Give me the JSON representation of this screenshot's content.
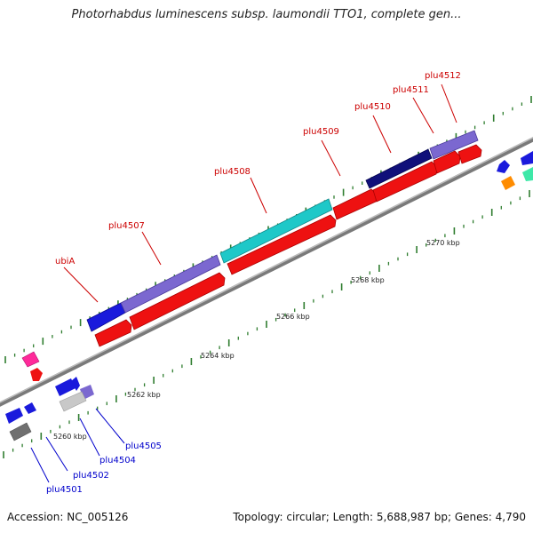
{
  "title": "Photorhabdus luminescens subsp. laumondii TTO1, complete gen...",
  "footer": {
    "accession": "Accession: NC_005126",
    "topology": "Topology: circular; Length: 5,688,987 bp; Genes: 4,790"
  },
  "colors": {
    "backbone": "#909090",
    "tick": "#2f7d2f",
    "forward_label": "#cc0000",
    "reverse_label": "#0000cc"
  },
  "scale_labels": [
    "5260 kbp",
    "5262 kbp",
    "5264 kbp",
    "5266 kbp",
    "5268 kbp",
    "5270 kbp"
  ],
  "genes_forward": [
    {
      "name": "ubiA",
      "color": "#1a1adc"
    },
    {
      "name": "plu4507",
      "color": "#7b68d0"
    },
    {
      "name": "plu4508",
      "color": "#1ec8c8"
    },
    {
      "name": "plu4509",
      "color": "#ee1111"
    },
    {
      "name": "plu4510",
      "color": "#10107a"
    },
    {
      "name": "plu4511",
      "color": "#7b68d0"
    },
    {
      "name": "plu4512",
      "color": "#ee1111"
    }
  ],
  "genes_reverse": [
    {
      "name": "plu4501"
    },
    {
      "name": "plu4502"
    },
    {
      "name": "plu4504"
    },
    {
      "name": "plu4505"
    }
  ]
}
